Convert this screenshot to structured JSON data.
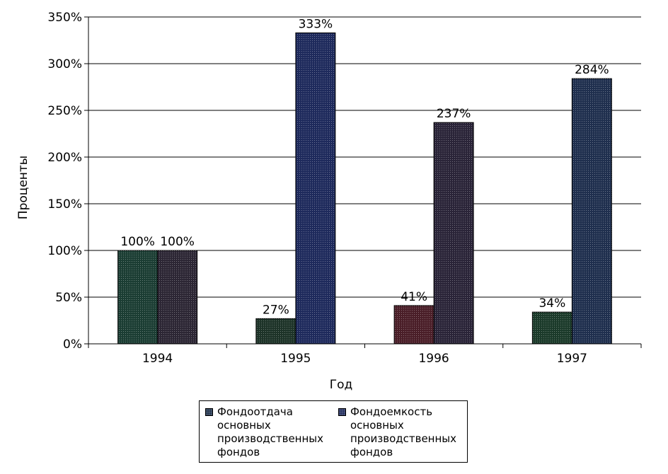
{
  "chart_data": {
    "type": "bar",
    "categories": [
      "1994",
      "1995",
      "1996",
      "1997"
    ],
    "series": [
      {
        "name": "Фондоотдача основных производственных фондов",
        "values": [
          100,
          27,
          41,
          34
        ],
        "labels": [
          "100%",
          "27%",
          "41%",
          "34%"
        ],
        "colors": [
          "#1b3d33",
          "#1d3328",
          "#4a1e28",
          "#1b3a2a"
        ]
      },
      {
        "name": "Фондоемкость основных производственных фондов",
        "values": [
          100,
          333,
          237,
          284
        ],
        "labels": [
          "100%",
          "333%",
          "237%",
          "284%"
        ],
        "colors": [
          "#2c2634",
          "#1e2a5c",
          "#2a2438",
          "#1f2f4e"
        ]
      }
    ],
    "xlabel": "Год",
    "ylabel": "Проценты",
    "ylim": [
      0,
      350
    ],
    "yticks": [
      0,
      50,
      100,
      150,
      200,
      250,
      300,
      350
    ],
    "ytick_labels": [
      "0%",
      "50%",
      "100%",
      "150%",
      "200%",
      "250%",
      "300%",
      "350%"
    ],
    "grid": true,
    "legend_position": "bottom"
  },
  "legend": {
    "series1_label": "Фондоотдача основных производственных фондов",
    "series2_label": "Фондоемкость основных производственных фондов",
    "series1_color": "#1d2f4a",
    "series2_color": "#1e2a5c"
  }
}
